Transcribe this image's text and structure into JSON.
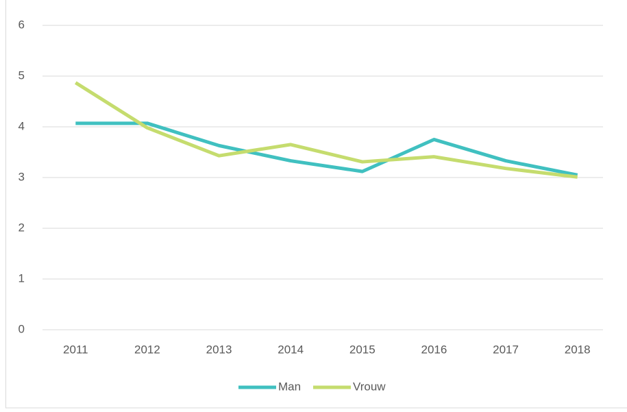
{
  "chart_data": {
    "type": "line",
    "categories": [
      "2011",
      "2012",
      "2013",
      "2014",
      "2015",
      "2016",
      "2017",
      "2018"
    ],
    "series": [
      {
        "name": "Man",
        "color": "#40c0c0",
        "values": [
          4.07,
          4.07,
          3.63,
          3.33,
          3.12,
          3.75,
          3.33,
          3.05
        ]
      },
      {
        "name": "Vrouw",
        "color": "#c5dc6e",
        "values": [
          4.87,
          3.98,
          3.43,
          3.65,
          3.31,
          3.41,
          3.18,
          3.01
        ]
      }
    ],
    "ylim": [
      0,
      6
    ],
    "yticks": [
      0,
      1,
      2,
      3,
      4,
      5,
      6
    ],
    "grid": true,
    "legend": "bottom"
  }
}
